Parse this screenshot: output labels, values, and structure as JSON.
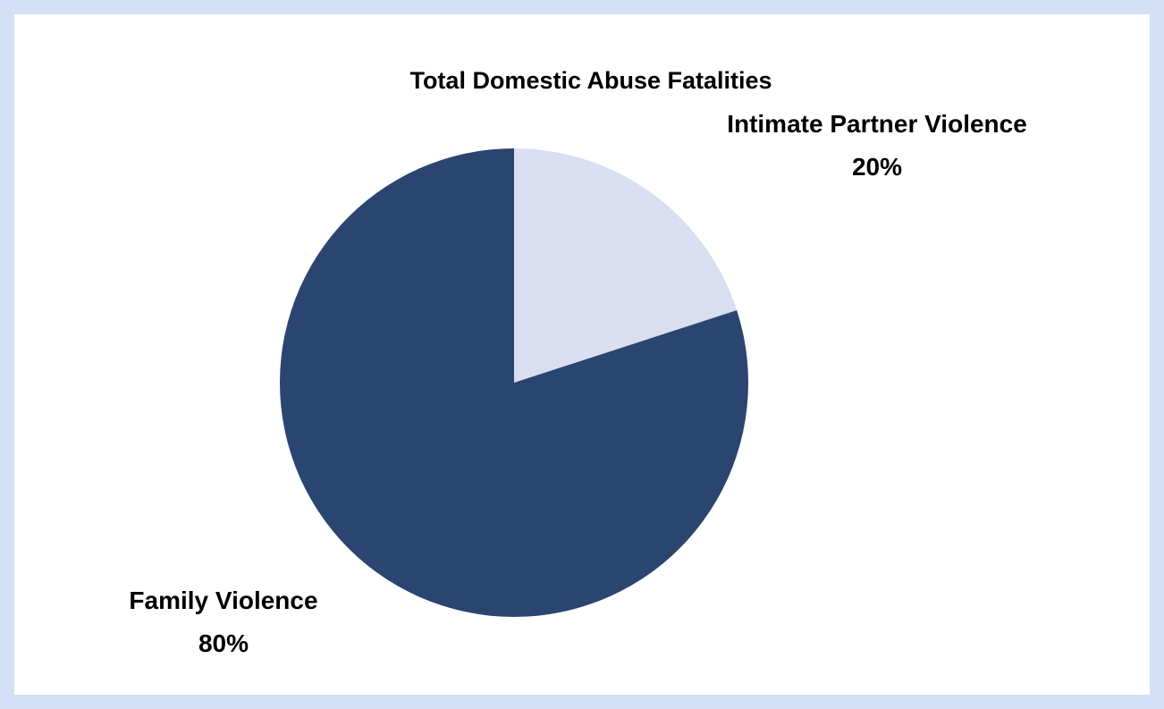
{
  "chart_data": {
    "type": "pie",
    "title": "Total Domestic Abuse Fatalities",
    "slices": [
      {
        "label": "Intimate Partner Violence",
        "value": 20,
        "value_label": "20%",
        "color": "#d9dff0"
      },
      {
        "label": "Family Violence",
        "value": 80,
        "value_label": "80%",
        "color": "#2a4570"
      }
    ],
    "start_angle_deg": 0,
    "direction": "clockwise",
    "legend": "none",
    "data_labels": "outside"
  },
  "colors": {
    "background_border": "#d3dff4",
    "panel": "#ffffff"
  }
}
